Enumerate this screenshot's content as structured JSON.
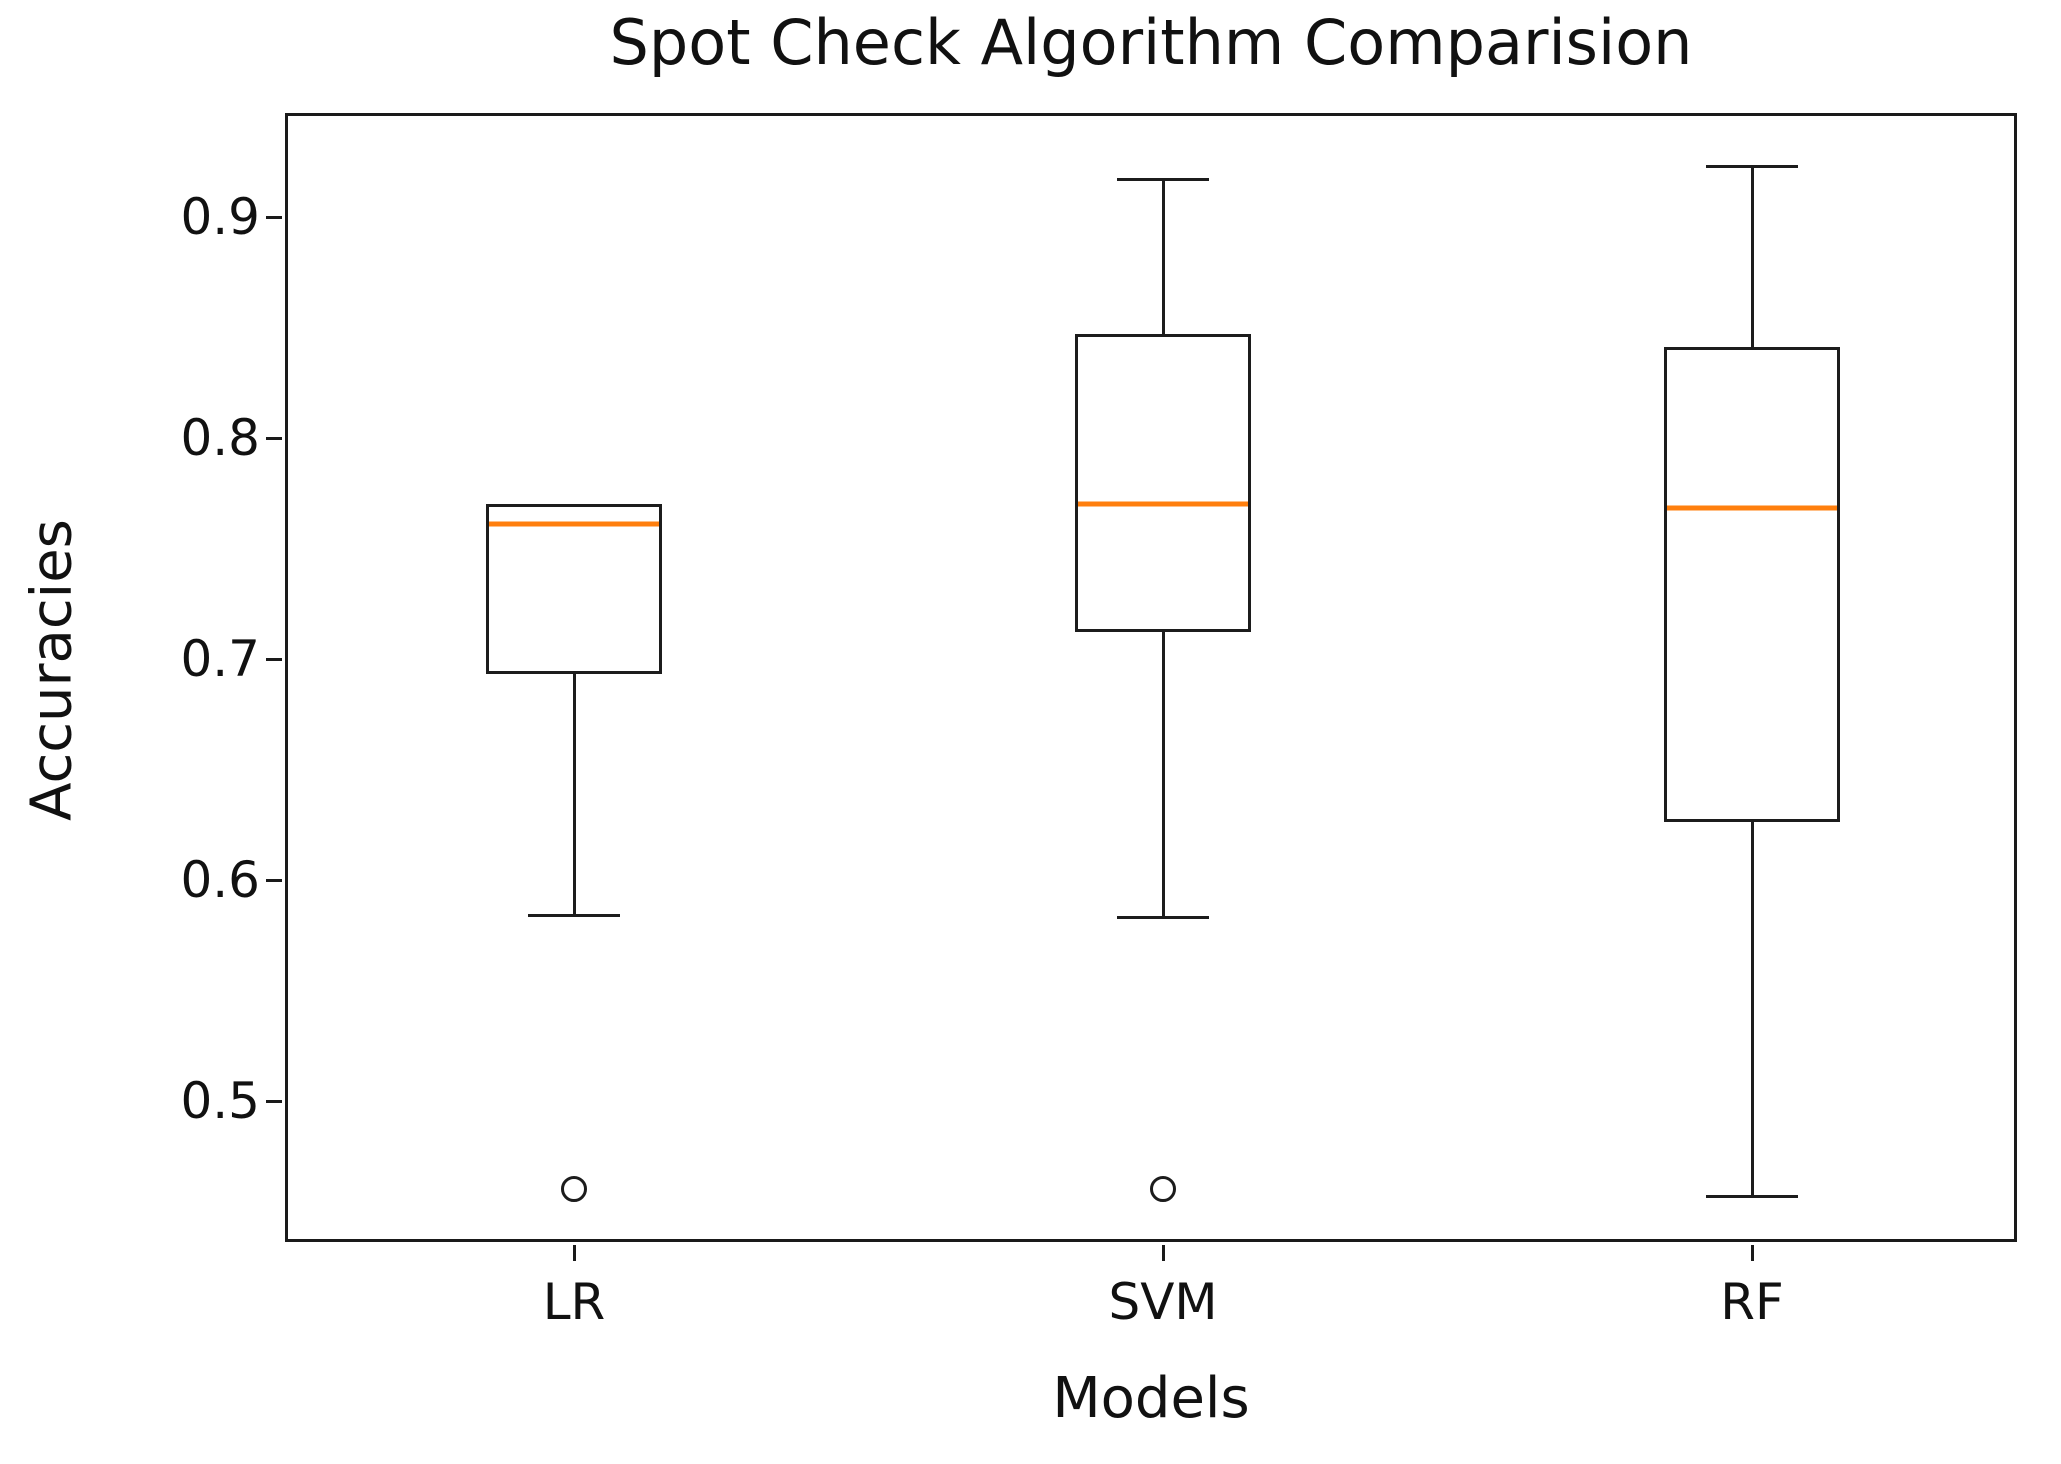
{
  "title": "Spot Check Algorithm Comparision",
  "chart_data": {
    "type": "boxplot",
    "title": "Spot Check Algorithm Comparision",
    "xlabel": "Models",
    "ylabel": "Accuracies",
    "categories": [
      "LR",
      "SVM",
      "RF"
    ],
    "yticks": [
      0.9,
      0.8,
      0.7,
      0.6,
      0.5
    ],
    "ylim": [
      0.436,
      0.947
    ],
    "grid": false,
    "legend": null,
    "series": [
      {
        "name": "LR",
        "whisker_low": 0.584,
        "q1": 0.693,
        "median": 0.761,
        "q3": 0.77,
        "whisker_high": 0.77,
        "outliers": [
          0.46
        ]
      },
      {
        "name": "SVM",
        "whisker_low": 0.583,
        "q1": 0.712,
        "median": 0.77,
        "q3": 0.847,
        "whisker_high": 0.917,
        "outliers": [
          0.46
        ]
      },
      {
        "name": "RF",
        "whisker_low": 0.457,
        "q1": 0.626,
        "median": 0.768,
        "q3": 0.841,
        "whisker_high": 0.923,
        "outliers": []
      }
    ],
    "colors": {
      "box_line": "#1c1c1c",
      "median": "#ff7f0e",
      "background": "#ffffff",
      "text": "#111111"
    }
  }
}
